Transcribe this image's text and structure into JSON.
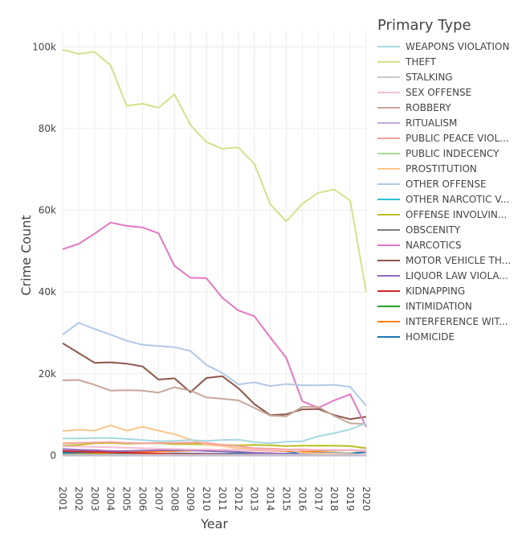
{
  "chart_data": {
    "type": "line",
    "xlabel": "Year",
    "ylabel": "Crime Count",
    "legend_title": "Primary Type",
    "legend_placement": "right",
    "grid": true,
    "x": [
      2001,
      2002,
      2003,
      2004,
      2005,
      2006,
      2007,
      2008,
      2009,
      2010,
      2011,
      2012,
      2013,
      2014,
      2015,
      2016,
      2017,
      2018,
      2019,
      2020
    ],
    "ylim": [
      -6000,
      104000
    ],
    "yticks": [
      0,
      20000,
      40000,
      60000,
      80000,
      100000
    ],
    "ytick_labels": [
      "0",
      "20k",
      "40k",
      "60k",
      "80k",
      "100k"
    ],
    "series": [
      {
        "name": "WEAPONS VIOLATION",
        "legend_label": "WEAPONS VIOLATION",
        "color": "#a6d8e3",
        "values": [
          4200,
          4200,
          4300,
          4300,
          4100,
          3800,
          3500,
          3600,
          3800,
          3600,
          3800,
          3900,
          3300,
          3000,
          3400,
          3500,
          4700,
          5500,
          6400,
          7900
        ]
      },
      {
        "name": "THEFT",
        "legend_label": "THEFT",
        "color": "#d8df8a",
        "values": [
          99300,
          98300,
          98800,
          95500,
          85600,
          86100,
          85100,
          88400,
          80900,
          76700,
          75100,
          75400,
          71400,
          61500,
          57300,
          61600,
          64300,
          65100,
          62400,
          40000
        ]
      },
      {
        "name": "STALKING",
        "legend_label": "STALKING",
        "color": "#c8c8c8",
        "values": [
          200,
          200,
          200,
          200,
          200,
          200,
          200,
          200,
          200,
          200,
          200,
          200,
          200,
          200,
          200,
          200,
          200,
          200,
          200,
          200
        ]
      },
      {
        "name": "SEX OFFENSE",
        "legend_label": "SEX OFFENSE",
        "color": "#f5bfd2",
        "values": [
          2200,
          2200,
          2100,
          2000,
          1900,
          1800,
          1700,
          1600,
          1500,
          1500,
          1400,
          1400,
          1400,
          1300,
          1300,
          1300,
          1400,
          1400,
          1400,
          1300
        ]
      },
      {
        "name": "ROBBERY",
        "legend_label": "ROBBERY",
        "color": "#c8a798",
        "values": [
          18400,
          18500,
          17300,
          15900,
          16000,
          15900,
          15400,
          16700,
          15900,
          14200,
          13900,
          13500,
          11700,
          9800,
          9600,
          11900,
          11900,
          9700,
          7900,
          7700
        ]
      },
      {
        "name": "RITUALISM",
        "legend_label": "RITUALISM",
        "color": "#c4a9d8",
        "values": [
          20,
          20,
          15,
          15,
          10,
          10,
          10,
          10,
          10,
          10,
          10,
          10,
          10,
          10,
          10,
          10,
          10,
          10,
          10,
          10
        ]
      },
      {
        "name": "PUBLIC PEACE VIOLATION",
        "legend_label": "PUBLIC PEACE VIOL...",
        "color": "#f7a3a1",
        "values": [
          3000,
          3100,
          3200,
          3300,
          3100,
          3000,
          3100,
          3100,
          3200,
          3100,
          2600,
          2300,
          1800,
          1700,
          1500,
          1500,
          1400,
          1300,
          1300,
          1000
        ]
      },
      {
        "name": "PUBLIC INDECENCY",
        "legend_label": "PUBLIC INDECENCY",
        "color": "#a6df97",
        "values": [
          20,
          20,
          20,
          20,
          20,
          20,
          20,
          20,
          20,
          20,
          20,
          20,
          20,
          20,
          20,
          20,
          20,
          20,
          20,
          20
        ]
      },
      {
        "name": "PROSTITUTION",
        "legend_label": "PROSTITUTION",
        "color": "#fcc58c",
        "values": [
          6000,
          6300,
          6100,
          7400,
          6100,
          7000,
          6100,
          5200,
          3900,
          2600,
          2300,
          1800,
          1600,
          1700,
          1500,
          700,
          600,
          500,
          400,
          100
        ]
      },
      {
        "name": "OTHER OFFENSE",
        "legend_label": "OTHER OFFENSE",
        "color": "#b2c9e6",
        "values": [
          29600,
          32500,
          31000,
          29600,
          28100,
          27100,
          26800,
          26500,
          25600,
          22200,
          20200,
          17400,
          17900,
          17000,
          17500,
          17200,
          17200,
          17300,
          16800,
          12200
        ]
      },
      {
        "name": "OTHER NARCOTIC VIOLATION",
        "legend_label": "OTHER NARCOTIC V...",
        "color": "#2bbfcf",
        "values": [
          10,
          10,
          10,
          10,
          10,
          10,
          10,
          10,
          10,
          10,
          10,
          10,
          10,
          10,
          10,
          10,
          10,
          10,
          10,
          10
        ]
      },
      {
        "name": "OFFENSE INVOLVING CHILDREN",
        "legend_label": "OFFENSE INVOLVIN...",
        "color": "#bcbd22",
        "values": [
          2400,
          2600,
          3000,
          3100,
          2900,
          3000,
          3000,
          2800,
          2800,
          2700,
          2600,
          2500,
          2600,
          2500,
          2300,
          2400,
          2400,
          2400,
          2300,
          1800
        ]
      },
      {
        "name": "OBSCENITY",
        "legend_label": "OBSCENITY",
        "color": "#7f7f7f",
        "values": [
          30,
          30,
          30,
          30,
          30,
          30,
          30,
          30,
          30,
          30,
          30,
          40,
          40,
          40,
          50,
          60,
          70,
          70,
          80,
          60
        ]
      },
      {
        "name": "NARCOTICS",
        "legend_label": "NARCOTICS",
        "color": "#e377c2",
        "values": [
          50500,
          51800,
          54300,
          57000,
          56200,
          55800,
          54400,
          46400,
          43500,
          43400,
          38600,
          35500,
          34100,
          28900,
          23900,
          13300,
          11700,
          13500,
          15000,
          7000
        ]
      },
      {
        "name": "MOTOR VEHICLE THEFT",
        "legend_label": "MOTOR VEHICLE TH...",
        "color": "#8c564b",
        "values": [
          27500,
          25100,
          22700,
          22800,
          22500,
          21800,
          18600,
          18900,
          15500,
          19000,
          19400,
          16500,
          12600,
          9900,
          10100,
          11300,
          11400,
          9900,
          8900,
          9500
        ]
      },
      {
        "name": "LIQUOR LAW VIOLATION",
        "legend_label": "LIQUOR LAW VIOLA...",
        "color": "#9467bd",
        "values": [
          1600,
          1400,
          1300,
          1100,
          1100,
          1200,
          1300,
          1300,
          1300,
          1100,
          1000,
          900,
          700,
          600,
          400,
          300,
          300,
          300,
          200,
          100
        ]
      },
      {
        "name": "KIDNAPPING",
        "legend_label": "KIDNAPPING",
        "color": "#d62728",
        "values": [
          1100,
          1000,
          900,
          800,
          700,
          600,
          500,
          400,
          350,
          350,
          300,
          250,
          250,
          200,
          200,
          200,
          180,
          180,
          170,
          160
        ]
      },
      {
        "name": "INTIMIDATION",
        "legend_label": "INTIMIDATION",
        "color": "#2ca02c",
        "values": [
          300,
          300,
          300,
          250,
          250,
          250,
          250,
          250,
          200,
          200,
          200,
          200,
          170,
          170,
          170,
          160,
          170,
          180,
          180,
          180
        ]
      },
      {
        "name": "INTERFERENCE WITH PUBLIC OFFICER",
        "legend_label": "INTERFERENCE WIT...",
        "color": "#ff7f0e",
        "values": [
          300,
          400,
          500,
          700,
          800,
          900,
          1000,
          1100,
          1200,
          1300,
          1400,
          1400,
          1300,
          1200,
          1100,
          1000,
          1100,
          1200,
          1300,
          1100
        ]
      },
      {
        "name": "HOMICIDE",
        "legend_label": "HOMICIDE",
        "color": "#1f77b4",
        "values": [
          700,
          700,
          650,
          500,
          480,
          500,
          470,
          530,
          490,
          460,
          460,
          540,
          440,
          450,
          510,
          800,
          700,
          620,
          520,
          800
        ]
      }
    ]
  }
}
